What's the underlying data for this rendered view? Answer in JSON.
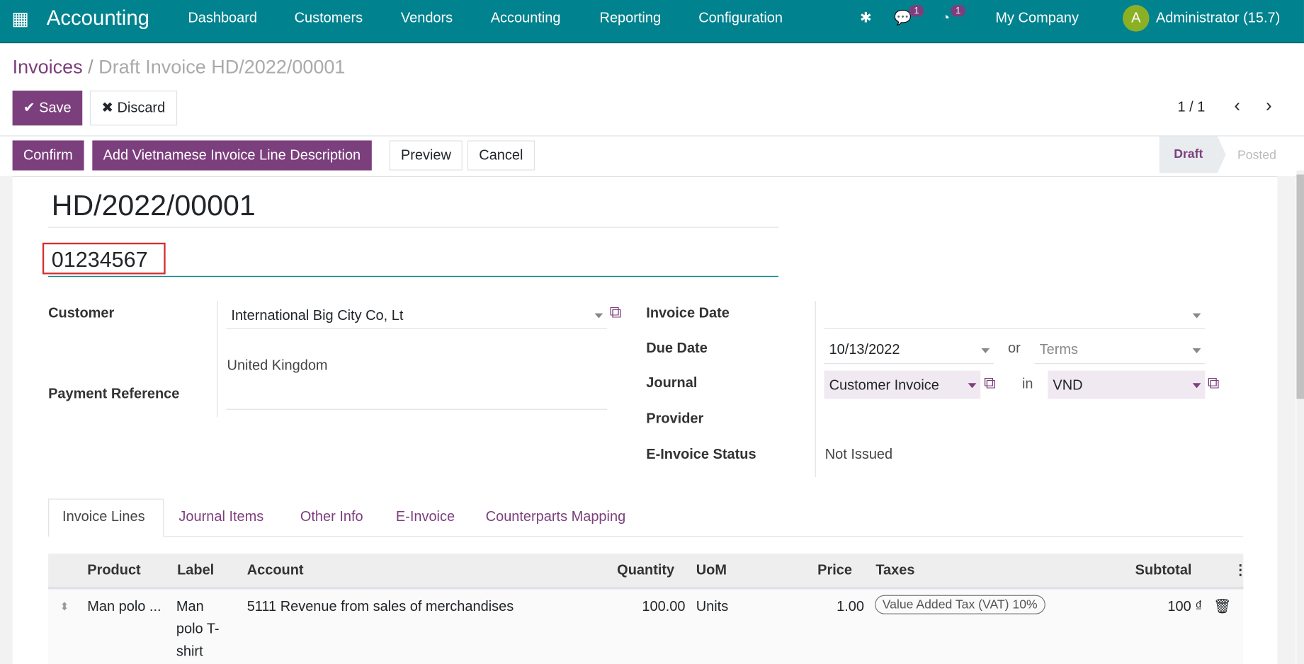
{
  "navbar": {
    "app": "Accounting",
    "menu": [
      "Dashboard",
      "Customers",
      "Vendors",
      "Accounting",
      "Reporting",
      "Configuration"
    ],
    "messages_count": "1",
    "activities_count": "1",
    "company": "My Company",
    "avatar_letter": "A",
    "user": "Administrator (15.7)"
  },
  "breadcrumb": {
    "parent": "Invoices",
    "current": "Draft Invoice HD/2022/00001"
  },
  "controls": {
    "save": "Save",
    "discard": "Discard",
    "pager": "1 / 1"
  },
  "actions": {
    "confirm": "Confirm",
    "add_vn": "Add Vietnamese Invoice Line Description",
    "preview": "Preview",
    "cancel": "Cancel"
  },
  "status": {
    "stages": [
      "Draft",
      "Posted"
    ],
    "active": "Draft"
  },
  "form": {
    "name": "HD/2022/00001",
    "reference_input": "01234567",
    "customer_label": "Customer",
    "customer": "International Big City Co, Lt",
    "customer_address": "United Kingdom",
    "payment_ref_label": "Payment Reference",
    "invoice_date_label": "Invoice Date",
    "invoice_date": "",
    "due_date_label": "Due Date",
    "due_date": "10/13/2022",
    "or": "or",
    "terms_placeholder": "Terms",
    "journal_label": "Journal",
    "journal": "Customer Invoice",
    "in": "in",
    "currency": "VND",
    "provider_label": "Provider",
    "einvoice_status_label": "E-Invoice Status",
    "einvoice_status": "Not Issued"
  },
  "tabs": [
    "Invoice Lines",
    "Journal Items",
    "Other Info",
    "E-Invoice",
    "Counterparts Mapping"
  ],
  "table": {
    "headers": [
      "Product",
      "Label",
      "Account",
      "Quantity",
      "UoM",
      "Price",
      "Taxes",
      "Subtotal"
    ],
    "rows": [
      {
        "product": "Man polo ...",
        "label": "Man polo T-shirt",
        "account": "5111 Revenue from sales of merchandises",
        "quantity": "100.00",
        "uom": "Units",
        "price": "1.00",
        "tax": "Value Added Tax (VAT) 10%",
        "subtotal": "100 ₫"
      }
    ]
  },
  "colors": {
    "navbar": "#00838f",
    "primary": "#7c3f7d",
    "highlight_box": "#d32f2f"
  }
}
